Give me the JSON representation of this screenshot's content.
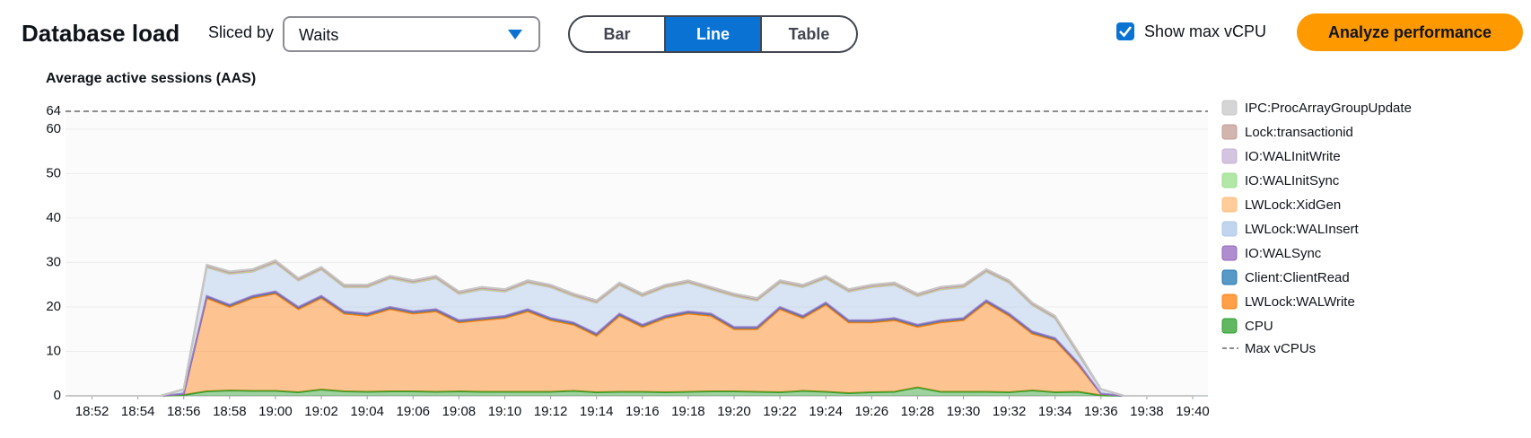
{
  "controls": {
    "title": "Database load",
    "sliced_by_label": "Sliced by",
    "sliced_by_value": "Waits",
    "view_options": [
      "Bar",
      "Line",
      "Table"
    ],
    "selected_view": 1,
    "show_max_label": "Show max vCPU",
    "show_max_vcpu": true,
    "analyze_button": "Analyze performance"
  },
  "chart_data": {
    "type": "stacked-area",
    "y_label": "Average active sessions (AAS)",
    "x": [
      "18:51",
      "18:52",
      "18:53",
      "18:54",
      "18:55",
      "18:56",
      "18:57",
      "18:58",
      "18:59",
      "19:00",
      "19:01",
      "19:02",
      "19:03",
      "19:04",
      "19:05",
      "19:06",
      "19:07",
      "19:08",
      "19:09",
      "19:10",
      "19:11",
      "19:12",
      "19:13",
      "19:14",
      "19:15",
      "19:16",
      "19:17",
      "19:18",
      "19:19",
      "19:20",
      "19:21",
      "19:22",
      "19:23",
      "19:24",
      "19:25",
      "19:26",
      "19:27",
      "19:28",
      "19:29",
      "19:30",
      "19:31",
      "19:32",
      "19:33",
      "19:34",
      "19:35",
      "19:36",
      "19:37",
      "19:38",
      "19:39",
      "19:40"
    ],
    "xlim": [
      "18:51",
      "19:40"
    ],
    "xticks": [
      "18:52",
      "18:54",
      "18:56",
      "18:58",
      "19:00",
      "19:02",
      "19:04",
      "19:06",
      "19:08",
      "19:10",
      "19:12",
      "19:14",
      "19:16",
      "19:18",
      "19:20",
      "19:22",
      "19:24",
      "19:26",
      "19:28",
      "19:30",
      "19:32",
      "19:34",
      "19:36",
      "19:38",
      "19:40"
    ],
    "ylim": [
      0,
      64
    ],
    "yticks": [
      0,
      10,
      20,
      30,
      40,
      50,
      60,
      64
    ],
    "grid": true,
    "reference_line": {
      "name": "Max vCPUs",
      "value": 64,
      "color": "#8d8d8d"
    },
    "series": [
      {
        "name": "CPU",
        "color": "#2ca02c",
        "values": [
          0,
          0,
          0,
          0,
          0,
          0.2,
          1,
          1.2,
          1.1,
          1.1,
          0.8,
          1.4,
          1,
          0.9,
          1,
          1,
          0.9,
          1,
          0.9,
          0.9,
          0.9,
          0.9,
          1.1,
          0.8,
          0.9,
          0.9,
          0.8,
          0.9,
          1,
          1,
          0.9,
          0.8,
          1.1,
          0.9,
          0.6,
          0.8,
          0.9,
          1.9,
          0.9,
          0.9,
          0.9,
          0.8,
          1.2,
          0.8,
          0.9,
          0.1,
          0,
          0,
          0,
          0
        ]
      },
      {
        "name": "LWLock:WALWrite",
        "color": "#ff7f0e",
        "values": [
          0,
          0,
          0,
          0,
          0,
          0.3,
          21,
          18.8,
          20.9,
          21.9,
          18.7,
          20.6,
          17.5,
          17.1,
          18.5,
          17.5,
          18.1,
          15.5,
          16.1,
          16.6,
          18.1,
          16.1,
          14.9,
          12.7,
          17.1,
          14.6,
          16.7,
          17.6,
          17,
          14,
          14.1,
          18.7,
          16.4,
          19.6,
          15.9,
          15.7,
          16.1,
          13.6,
          15.6,
          16.1,
          20.1,
          17.2,
          12.8,
          11.7,
          6.1,
          0.4,
          0,
          0,
          0,
          0
        ]
      },
      {
        "name": "Client:ClientRead",
        "color": "#1f77b4",
        "values": [
          0,
          0,
          0,
          0,
          0,
          0,
          0.4,
          0.4,
          0.4,
          0.4,
          0.4,
          0.4,
          0.4,
          0.4,
          0.4,
          0.4,
          0.4,
          0.4,
          0.4,
          0.4,
          0.4,
          0.4,
          0.4,
          0.4,
          0.4,
          0.4,
          0.4,
          0.4,
          0.4,
          0.4,
          0.4,
          0.4,
          0.4,
          0.4,
          0.4,
          0.4,
          0.4,
          0.4,
          0.4,
          0.4,
          0.4,
          0.4,
          0.4,
          0.4,
          0.4,
          0,
          0,
          0,
          0,
          0
        ]
      },
      {
        "name": "IO:WALSync",
        "color": "#9467bd",
        "values": [
          0,
          0,
          0,
          0,
          0,
          0,
          0.1,
          0.1,
          0.1,
          0.1,
          0.1,
          0.1,
          0.1,
          0.1,
          0.1,
          0.1,
          0.1,
          0.1,
          0.1,
          0.1,
          0.1,
          0.1,
          0.1,
          0.1,
          0.1,
          0.1,
          0.1,
          0.1,
          0.1,
          0.1,
          0.1,
          0.1,
          0.1,
          0.1,
          0.1,
          0.1,
          0.1,
          0.1,
          0.1,
          0.1,
          0.1,
          0.1,
          0.1,
          0.1,
          0.1,
          0,
          0,
          0,
          0,
          0
        ]
      },
      {
        "name": "LWLock:WALInsert",
        "color": "#aec7e8",
        "values": [
          0,
          0,
          0,
          0,
          0,
          1.0,
          6.4,
          6.9,
          5.4,
          6.4,
          5.9,
          5.9,
          5.4,
          5.9,
          6.4,
          6.4,
          6.9,
          5.9,
          6.4,
          5.4,
          5.9,
          6.9,
          5.9,
          6.9,
          6.4,
          6.4,
          6.4,
          6.4,
          5.4,
          6.9,
          5.9,
          5.4,
          6.4,
          5.4,
          6.4,
          7.4,
          7.4,
          6.4,
          6.9,
          6.9,
          6.4,
          6.9,
          5.9,
          4.4,
          1.9,
          1.0,
          0,
          0,
          0,
          0
        ]
      },
      {
        "name": "LWLock:XidGen",
        "color": "#ffbb78",
        "values": [
          0,
          0,
          0,
          0,
          0,
          0,
          0.1,
          0.1,
          0.1,
          0.1,
          0.1,
          0.1,
          0.1,
          0.1,
          0.1,
          0.1,
          0.1,
          0.1,
          0.1,
          0.1,
          0.1,
          0.1,
          0.1,
          0.1,
          0.1,
          0.1,
          0.1,
          0.1,
          0.1,
          0.1,
          0.1,
          0.1,
          0.1,
          0.1,
          0.1,
          0.1,
          0.1,
          0.1,
          0.1,
          0.1,
          0.1,
          0.1,
          0.1,
          0.1,
          0.1,
          0,
          0,
          0,
          0,
          0
        ]
      },
      {
        "name": "IO:WALInitSync",
        "color": "#98df8a",
        "values": [
          0,
          0,
          0,
          0,
          0,
          0,
          0.1,
          0.1,
          0.1,
          0.1,
          0.1,
          0.1,
          0.1,
          0.1,
          0.1,
          0.1,
          0.1,
          0.1,
          0.1,
          0.1,
          0.1,
          0.1,
          0.1,
          0.1,
          0.1,
          0.1,
          0.1,
          0.1,
          0.1,
          0.1,
          0.1,
          0.1,
          0.1,
          0.1,
          0.1,
          0.1,
          0.1,
          0.1,
          0.1,
          0.1,
          0.1,
          0.1,
          0.1,
          0.1,
          0.1,
          0,
          0,
          0,
          0,
          0
        ]
      },
      {
        "name": "IO:WALInitWrite",
        "color": "#c5b0d5",
        "values": [
          0,
          0,
          0,
          0,
          0,
          0,
          0.1,
          0.1,
          0.1,
          0.1,
          0.1,
          0.1,
          0.1,
          0.1,
          0.1,
          0.1,
          0.1,
          0.1,
          0.1,
          0.1,
          0.1,
          0.1,
          0.1,
          0.1,
          0.1,
          0.1,
          0.1,
          0.1,
          0.1,
          0.1,
          0.1,
          0.1,
          0.1,
          0.1,
          0.1,
          0.1,
          0.1,
          0.1,
          0.1,
          0.1,
          0.1,
          0.1,
          0.1,
          0.1,
          0.1,
          0,
          0,
          0,
          0,
          0
        ]
      },
      {
        "name": "Lock:transactionid",
        "color": "#c49c94",
        "values": [
          0,
          0,
          0,
          0,
          0,
          0,
          0.1,
          0.1,
          0.1,
          0.1,
          0.1,
          0.1,
          0.1,
          0.1,
          0.1,
          0.1,
          0.1,
          0.1,
          0.1,
          0.1,
          0.1,
          0.1,
          0.1,
          0.1,
          0.1,
          0.1,
          0.1,
          0.1,
          0.1,
          0.1,
          0.1,
          0.1,
          0.1,
          0.1,
          0.1,
          0.1,
          0.1,
          0.1,
          0.1,
          0.1,
          0.1,
          0.1,
          0.1,
          0.1,
          0.1,
          0,
          0,
          0,
          0,
          0
        ]
      },
      {
        "name": "IPC:ProcArrayGroupUpdate",
        "color": "#c7c7c7",
        "values": [
          0,
          0,
          0,
          0,
          0,
          0,
          0.2,
          0.2,
          0.2,
          0.2,
          0.2,
          0.2,
          0.2,
          0.2,
          0.2,
          0.2,
          0.2,
          0.2,
          0.2,
          0.2,
          0.2,
          0.2,
          0.2,
          0.2,
          0.2,
          0.2,
          0.2,
          0.2,
          0.2,
          0.2,
          0.2,
          0.2,
          0.2,
          0.2,
          0.2,
          0.2,
          0.2,
          0.2,
          0.2,
          0.2,
          0.2,
          0.2,
          0.2,
          0.2,
          0.2,
          0,
          0,
          0,
          0,
          0
        ]
      }
    ]
  }
}
